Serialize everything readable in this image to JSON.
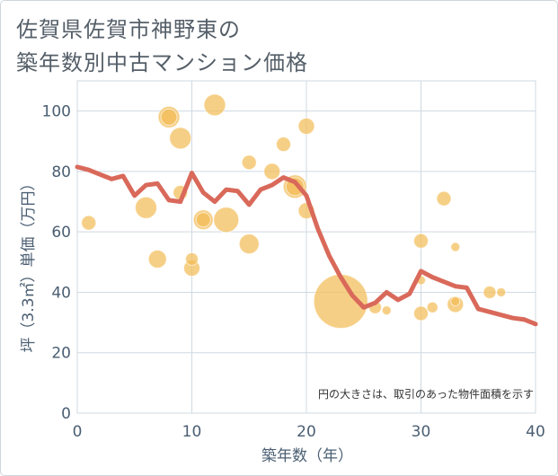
{
  "title_line1": "佐賀県佐賀市神野東の",
  "title_line2": "築年数別中古マンション価格",
  "colors": {
    "bubble": "#f2bc57",
    "line": "#d9695a",
    "grid": "#cfd9e2",
    "axis_text": "#4a5e72"
  },
  "chart_data": {
    "type": "scatter",
    "xlabel": "築年数（年）",
    "ylabel": "坪（3.3㎡）単価（万円）",
    "xlim": [
      0,
      40
    ],
    "ylim": [
      0,
      110
    ],
    "x_ticks": [
      0,
      10,
      20,
      30,
      40
    ],
    "y_ticks": [
      0,
      20,
      40,
      60,
      80,
      100
    ],
    "grid": true,
    "annotation": "円の大きさは、取引のあった物件面積を示す",
    "bubbles": [
      {
        "x": 1,
        "y": 63,
        "s": 8
      },
      {
        "x": 6,
        "y": 68,
        "s": 12
      },
      {
        "x": 7,
        "y": 51,
        "s": 10
      },
      {
        "x": 8,
        "y": 98,
        "s": 12
      },
      {
        "x": 8,
        "y": 98,
        "s": 9
      },
      {
        "x": 9,
        "y": 91,
        "s": 12
      },
      {
        "x": 9,
        "y": 73,
        "s": 8
      },
      {
        "x": 10,
        "y": 51,
        "s": 7
      },
      {
        "x": 10,
        "y": 48,
        "s": 9
      },
      {
        "x": 11,
        "y": 64,
        "s": 11
      },
      {
        "x": 11,
        "y": 64,
        "s": 8
      },
      {
        "x": 12,
        "y": 102,
        "s": 12
      },
      {
        "x": 13,
        "y": 64,
        "s": 14
      },
      {
        "x": 15,
        "y": 83,
        "s": 8
      },
      {
        "x": 15,
        "y": 56,
        "s": 11
      },
      {
        "x": 17,
        "y": 80,
        "s": 9
      },
      {
        "x": 18,
        "y": 89,
        "s": 8
      },
      {
        "x": 19,
        "y": 75,
        "s": 13
      },
      {
        "x": 19,
        "y": 75,
        "s": 10
      },
      {
        "x": 20,
        "y": 95,
        "s": 9
      },
      {
        "x": 20,
        "y": 67,
        "s": 9
      },
      {
        "x": 23,
        "y": 37,
        "s": 30
      },
      {
        "x": 26,
        "y": 35,
        "s": 7
      },
      {
        "x": 27,
        "y": 34,
        "s": 5
      },
      {
        "x": 30,
        "y": 57,
        "s": 8
      },
      {
        "x": 30,
        "y": 44,
        "s": 5
      },
      {
        "x": 30,
        "y": 33,
        "s": 8
      },
      {
        "x": 31,
        "y": 35,
        "s": 6
      },
      {
        "x": 32,
        "y": 71,
        "s": 8
      },
      {
        "x": 33,
        "y": 55,
        "s": 5
      },
      {
        "x": 33,
        "y": 36,
        "s": 9
      },
      {
        "x": 33,
        "y": 37,
        "s": 5
      },
      {
        "x": 36,
        "y": 40,
        "s": 7
      },
      {
        "x": 37,
        "y": 40,
        "s": 5
      }
    ],
    "trend": {
      "x": [
        0,
        1,
        2,
        3,
        4,
        5,
        6,
        7,
        8,
        9,
        10,
        11,
        12,
        13,
        14,
        15,
        16,
        17,
        18,
        19,
        20,
        21,
        22,
        23,
        24,
        25,
        26,
        27,
        28,
        29,
        30,
        31,
        32,
        33,
        34,
        35,
        36,
        37,
        38,
        39,
        40
      ],
      "y": [
        81.5,
        80.5,
        79,
        77.5,
        78.5,
        72,
        75.5,
        76,
        70.5,
        70,
        79.5,
        73,
        70,
        74,
        73.5,
        69,
        74,
        75.5,
        78,
        76.5,
        72,
        61,
        52,
        45,
        39,
        35,
        36.5,
        40,
        37.5,
        39.5,
        47,
        45,
        43.5,
        42,
        41.5,
        34.5,
        33.5,
        32.5,
        31.5,
        31,
        29.5
      ]
    }
  }
}
